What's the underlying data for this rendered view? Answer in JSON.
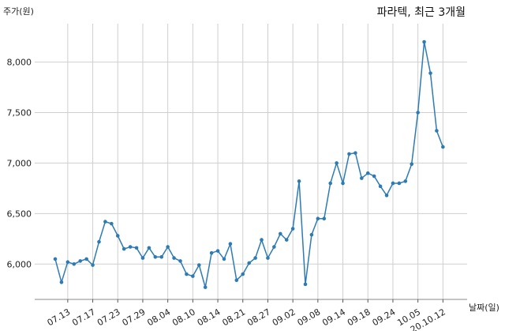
{
  "chart_data": {
    "type": "line",
    "title": "파라텍, 최근 3개월",
    "ylabel": "주가(원)",
    "xlabel": "날짜(일)",
    "ylim": [
      5650,
      8380
    ],
    "yticks": [
      6000,
      6500,
      7000,
      7500,
      8000
    ],
    "ytick_labels": [
      "6,000",
      "6,500",
      "7,000",
      "7,500",
      "8,000"
    ],
    "xtick_labels": [
      "07.13",
      "07.17",
      "07.23",
      "07.29",
      "08.04",
      "08.10",
      "08.14",
      "08.21",
      "08.27",
      "09.02",
      "09.08",
      "09.14",
      "09.18",
      "09.24",
      "10.05",
      "20.10.12"
    ],
    "xtick_index": [
      2,
      6,
      10,
      14,
      18,
      22,
      26,
      30,
      34,
      38,
      42,
      46,
      50,
      54,
      58,
      62
    ],
    "grid": true,
    "color": "#2e7bb4",
    "values": [
      6050,
      5820,
      6020,
      6000,
      6030,
      6050,
      5990,
      6220,
      6420,
      6400,
      6280,
      6150,
      6170,
      6160,
      6060,
      6160,
      6070,
      6070,
      6170,
      6060,
      6030,
      5900,
      5880,
      5990,
      5770,
      6110,
      6130,
      6050,
      6200,
      5840,
      5900,
      6010,
      6060,
      6240,
      6060,
      6170,
      6300,
      6240,
      6350,
      6820,
      5800,
      6290,
      6450,
      6450,
      6800,
      7000,
      6800,
      7090,
      7100,
      6850,
      6900,
      6870,
      6770,
      6680,
      6800,
      6800,
      6820,
      6990,
      7500,
      8200,
      7890,
      7320,
      7160
    ]
  }
}
